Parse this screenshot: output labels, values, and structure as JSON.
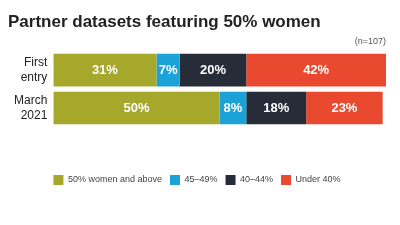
{
  "chart_data": {
    "type": "bar",
    "title": "Partner datasets featuring 50% women",
    "annotation": "(n=107)",
    "orientation": "horizontal",
    "stacked": true,
    "data_labels": true,
    "grid": false,
    "legend": "bottom",
    "tick_labels": "y",
    "categories": [
      "First entry",
      "March 2021"
    ],
    "xlim": [
      0,
      100
    ],
    "series": [
      {
        "name": "50% women and above",
        "color": "#a6a82b",
        "values": [
          31,
          50
        ],
        "value_labels": [
          "31%",
          "50%"
        ]
      },
      {
        "name": "45–49%",
        "color": "#1ba3d8",
        "values": [
          7,
          8
        ],
        "value_labels": [
          "7%",
          "8%"
        ]
      },
      {
        "name": "40–44%",
        "color": "#262c38",
        "values": [
          20,
          18
        ],
        "value_labels": [
          "20%",
          "18%"
        ]
      },
      {
        "name": "Under 40%",
        "color": "#e8492f",
        "values": [
          42,
          23
        ],
        "value_labels": [
          "42%",
          "23%"
        ]
      }
    ]
  }
}
